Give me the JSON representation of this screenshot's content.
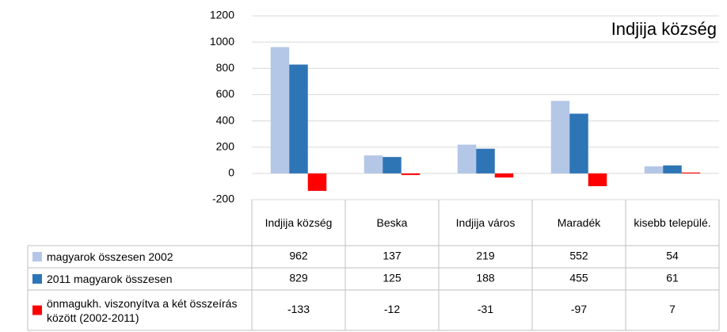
{
  "chart_data": {
    "type": "bar",
    "title": "Indjija község",
    "categories": [
      "Indjija község",
      "Beska",
      "Indjija város",
      "Maradék",
      "kisebb települé."
    ],
    "series": [
      {
        "name": "magyarok összesen 2002",
        "color": "#b4c7e7",
        "values": [
          962,
          137,
          219,
          552,
          54
        ]
      },
      {
        "name": "2011 magyarok összesen",
        "color": "#2e75b6",
        "values": [
          829,
          125,
          188,
          455,
          61
        ]
      },
      {
        "name": "önmagukh. viszonyítva a két összeírás között (2002-2011)",
        "color": "#ff0000",
        "values": [
          -133,
          -12,
          -31,
          -97,
          7
        ]
      }
    ],
    "ylim": [
      -200,
      1200
    ],
    "yticks": [
      -200,
      0,
      200,
      400,
      600,
      800,
      1000,
      1200
    ],
    "grid": true,
    "data_table": true
  }
}
